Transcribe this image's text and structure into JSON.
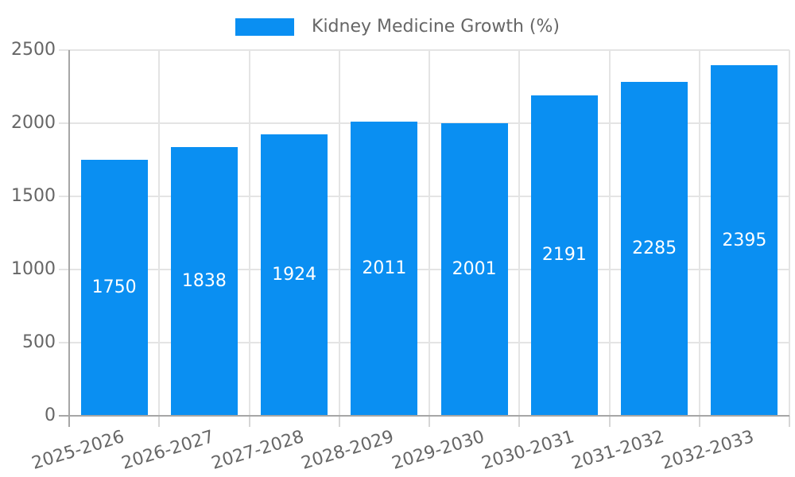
{
  "chart_data": {
    "type": "bar",
    "title": "Kidney Medicine Growth (%)",
    "categories": [
      "2025-2026",
      "2026-2027",
      "2027-2028",
      "2028-2029",
      "2029-2030",
      "2030-2031",
      "2031-2032",
      "2032-2033"
    ],
    "values": [
      1750,
      1838,
      1924,
      2011,
      2001,
      2191,
      2285,
      2395
    ],
    "xlabel": "",
    "ylabel": "",
    "ylim": [
      0,
      2500
    ],
    "yticks": [
      0,
      500,
      1000,
      1500,
      2000,
      2500
    ],
    "grid": true,
    "legend_position": "top",
    "value_labels": "inside-center",
    "colors": {
      "bar": "#0a8ff2",
      "value_label": "#ffffff",
      "axis_text": "#666666",
      "grid_line": "#e4e4e4",
      "axis_line": "#a6a6a6",
      "tick_line": "#d6d6d6",
      "background": "#ffffff"
    }
  }
}
